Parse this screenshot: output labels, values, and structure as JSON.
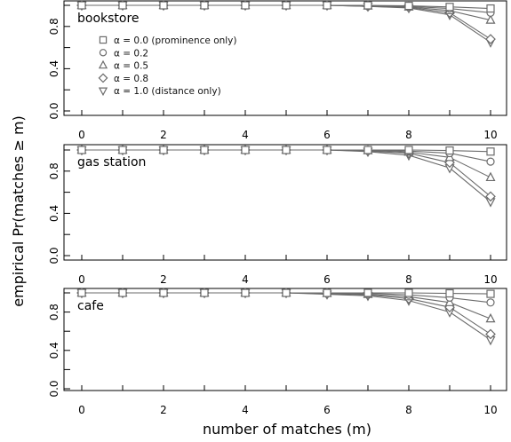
{
  "chart_data": {
    "type": "line",
    "xlabel": "number of matches (m)",
    "ylabel": "empirical Pr(matches ≥ m)",
    "xlim": [
      0,
      10
    ],
    "ylim": [
      0,
      1
    ],
    "x_ticks": [
      "0",
      "2",
      "4",
      "6",
      "8",
      "10"
    ],
    "y_ticks": [
      "0.0",
      "0.4",
      "0.8"
    ],
    "x": [
      0,
      1,
      2,
      3,
      4,
      5,
      6,
      7,
      8,
      9,
      10
    ],
    "legend": {
      "placement": "upper-left of first panel",
      "entries": [
        {
          "marker": "square",
          "label": "α = 0.0 (prominence only)"
        },
        {
          "marker": "circle",
          "label": "α = 0.2"
        },
        {
          "marker": "triangle-up",
          "label": "α = 0.5"
        },
        {
          "marker": "diamond",
          "label": "α = 0.8"
        },
        {
          "marker": "triangle-down",
          "label": "α = 1.0 (distance only)"
        }
      ]
    },
    "panels": [
      {
        "label": "bookstore",
        "series": [
          {
            "marker": "square",
            "values": [
              1,
              1,
              1,
              1,
              1,
              1,
              1,
              1,
              0.995,
              0.985,
              0.97
            ]
          },
          {
            "marker": "circle",
            "values": [
              1,
              1,
              1,
              1,
              1,
              1,
              1,
              0.995,
              0.99,
              0.97,
              0.93
            ]
          },
          {
            "marker": "triangle-up",
            "values": [
              1,
              1,
              1,
              1,
              1,
              1,
              1,
              0.995,
              0.985,
              0.95,
              0.86
            ]
          },
          {
            "marker": "diamond",
            "values": [
              1,
              1,
              1,
              1,
              1,
              1,
              1,
              0.99,
              0.98,
              0.93,
              0.68
            ]
          },
          {
            "marker": "triangle-down",
            "values": [
              1,
              1,
              1,
              1,
              1,
              1,
              1,
              0.99,
              0.975,
              0.91,
              0.65
            ]
          }
        ]
      },
      {
        "label": "gas station",
        "series": [
          {
            "marker": "square",
            "values": [
              1,
              1,
              1,
              1,
              1,
              1,
              1,
              1,
              1,
              0.995,
              0.985
            ]
          },
          {
            "marker": "circle",
            "values": [
              1,
              1,
              1,
              1,
              1,
              1,
              1,
              1,
              0.99,
              0.97,
              0.89
            ]
          },
          {
            "marker": "triangle-up",
            "values": [
              1,
              1,
              1,
              1,
              1,
              1,
              1,
              0.995,
              0.98,
              0.93,
              0.74
            ]
          },
          {
            "marker": "diamond",
            "values": [
              1,
              1,
              1,
              1,
              1,
              1,
              1,
              0.99,
              0.97,
              0.88,
              0.56
            ]
          },
          {
            "marker": "triangle-down",
            "values": [
              1,
              1,
              1,
              1,
              1,
              1,
              1,
              0.985,
              0.95,
              0.83,
              0.51
            ]
          }
        ]
      },
      {
        "label": "cafe",
        "series": [
          {
            "marker": "square",
            "values": [
              1,
              1,
              1,
              1,
              1,
              1,
              1,
              1,
              1,
              0.995,
              0.99
            ]
          },
          {
            "marker": "circle",
            "values": [
              1,
              1,
              1,
              1,
              1,
              1,
              1,
              0.995,
              0.98,
              0.95,
              0.9
            ]
          },
          {
            "marker": "triangle-up",
            "values": [
              1,
              1,
              1,
              1,
              1,
              1,
              0.995,
              0.985,
              0.96,
              0.9,
              0.73
            ]
          },
          {
            "marker": "diamond",
            "values": [
              1,
              1,
              1,
              1,
              1,
              1,
              0.99,
              0.98,
              0.94,
              0.85,
              0.57
            ]
          },
          {
            "marker": "triangle-down",
            "values": [
              1,
              1,
              1,
              1,
              1,
              1,
              0.985,
              0.97,
              0.92,
              0.8,
              0.51
            ]
          }
        ]
      }
    ],
    "colors": {
      "line": "#6b6b6b",
      "axis": "#000000"
    },
    "grid": false
  }
}
